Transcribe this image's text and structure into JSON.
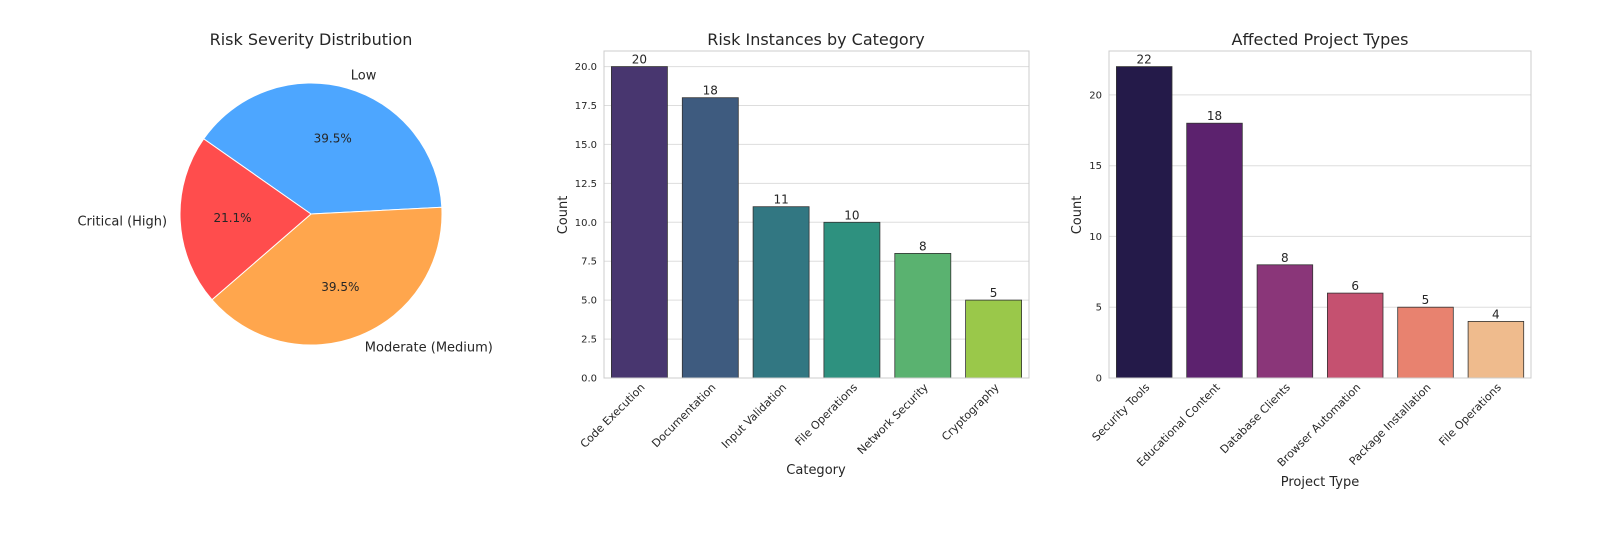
{
  "chart_data": [
    {
      "type": "pie",
      "title": "Risk Severity Distribution",
      "slices": [
        {
          "label": "Low",
          "value": 39.5,
          "pct_label": "39.5%",
          "color": "#4da6ff"
        },
        {
          "label": "Moderate (Medium)",
          "value": 39.5,
          "pct_label": "39.5%",
          "color": "#ffa64d"
        },
        {
          "label": "Critical (High)",
          "value": 21.1,
          "pct_label": "21.1%",
          "color": "#ff4d4d"
        }
      ]
    },
    {
      "type": "bar",
      "title": "Risk Instances by Category",
      "xlabel": "Category",
      "ylabel": "Count",
      "ylim": [
        0,
        21
      ],
      "yticks": [
        0,
        2.5,
        5,
        7.5,
        10,
        12.5,
        15,
        17.5,
        20
      ],
      "ytick_labels": [
        "0.0",
        "2.5",
        "5.0",
        "7.5",
        "10.0",
        "12.5",
        "15.0",
        "17.5",
        "20.0"
      ],
      "categories": [
        "Code Execution",
        "Documentation",
        "Input Validation",
        "File Operations",
        "Network Security",
        "Cryptography"
      ],
      "values": [
        20,
        18,
        11,
        10,
        8,
        5
      ],
      "colors": [
        "#48366f",
        "#3e5b7f",
        "#327782",
        "#2e917f",
        "#5ab270",
        "#9ac84a"
      ]
    },
    {
      "type": "bar",
      "title": "Affected Project Types",
      "xlabel": "Project Type",
      "ylabel": "Count",
      "ylim": [
        0,
        23.1
      ],
      "yticks": [
        0,
        5,
        10,
        15,
        20
      ],
      "ytick_labels": [
        "0",
        "5",
        "10",
        "15",
        "20"
      ],
      "categories": [
        "Security Tools",
        "Educational Content",
        "Database Clients",
        "Browser Automation",
        "Package Installation",
        "File Operations"
      ],
      "values": [
        22,
        18,
        8,
        6,
        5,
        4
      ],
      "colors": [
        "#241a49",
        "#5c226e",
        "#8a3679",
        "#c55170",
        "#e8826f",
        "#efbb8d"
      ]
    }
  ]
}
